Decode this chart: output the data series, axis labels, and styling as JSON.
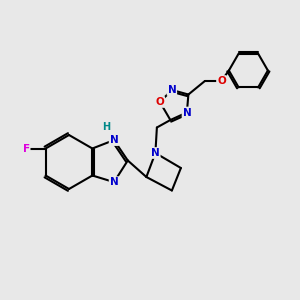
{
  "background_color": "#e8e8e8",
  "bond_color": "#000000",
  "atom_colors": {
    "N": "#0000cc",
    "O": "#dd0000",
    "F": "#dd00dd",
    "H": "#008888",
    "C": "#000000"
  },
  "figsize": [
    3.0,
    3.0
  ],
  "dpi": 100
}
